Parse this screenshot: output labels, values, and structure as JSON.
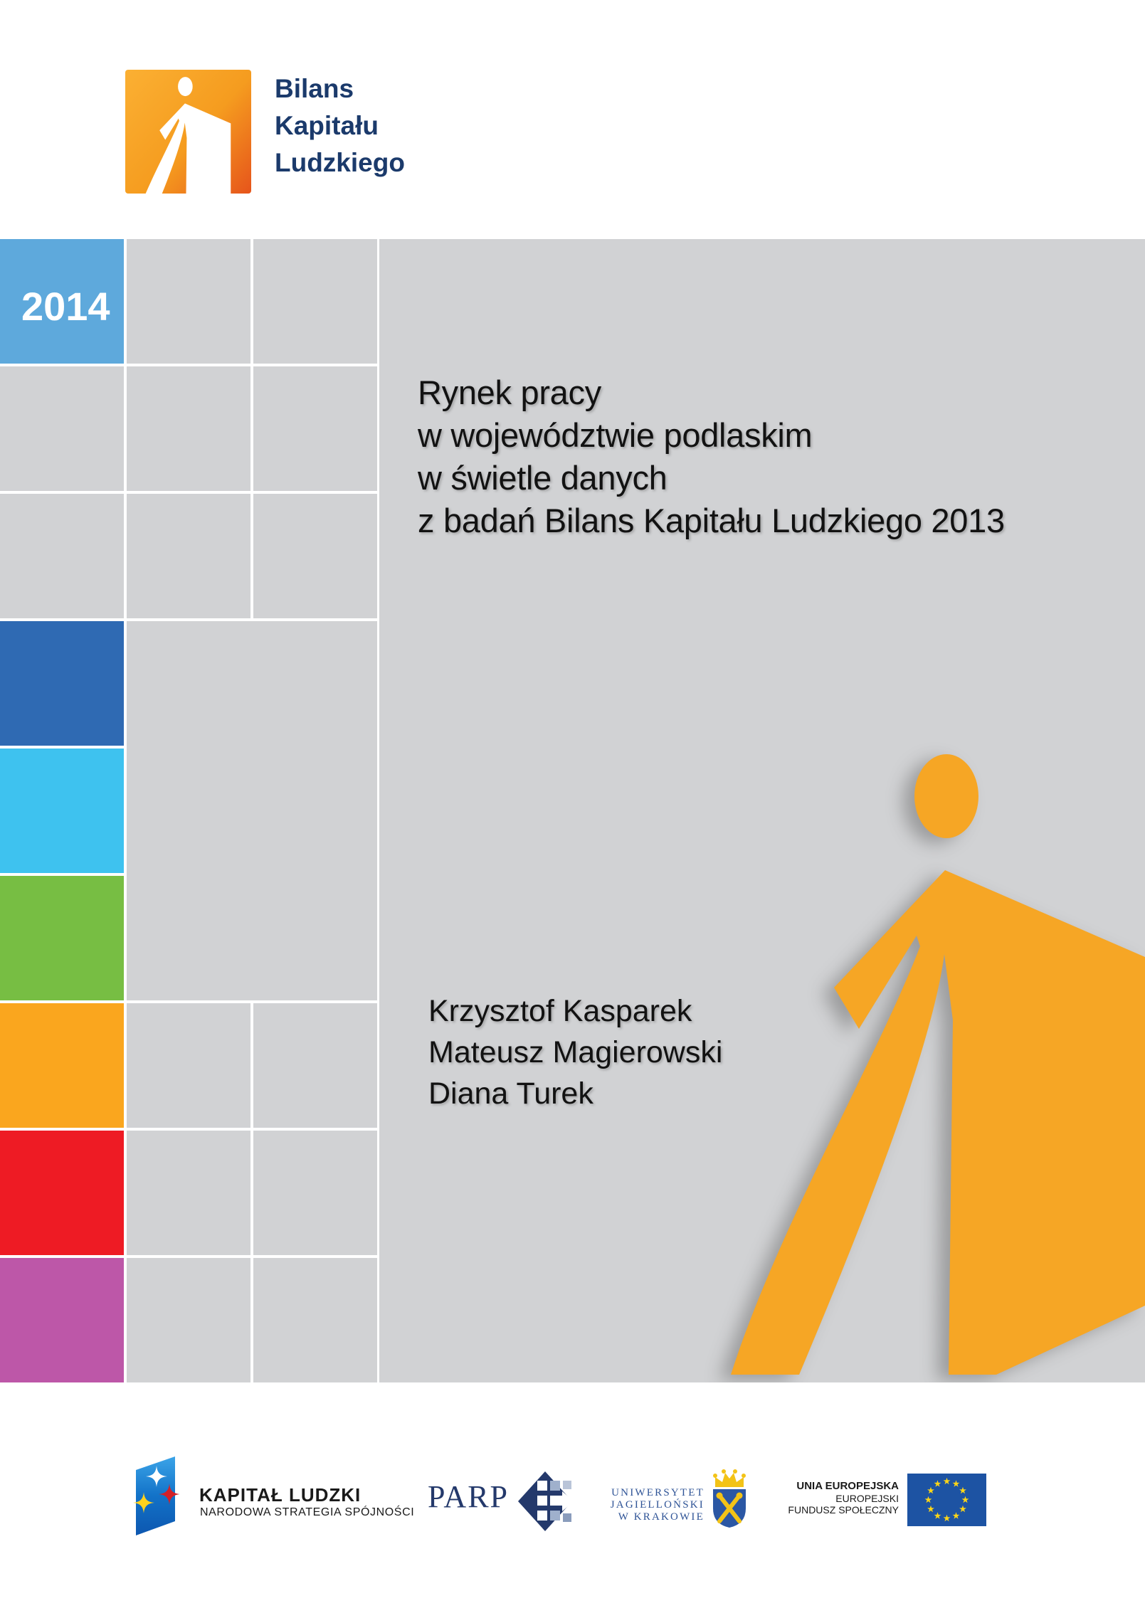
{
  "brand": {
    "line1": "Bilans",
    "line2": "Kapitału",
    "line3": "Ludzkiego"
  },
  "year_badge": "2014",
  "title": {
    "line1": "Rynek pracy",
    "line2": "w województwie podlaskim",
    "line3": "w świetle danych",
    "line4": "z badań Bilans Kapitału Ludzkiego 2013"
  },
  "authors": {
    "author1": "Krzysztof Kasparek",
    "author2": "Mateusz Magierowski",
    "author3": "Diana Turek"
  },
  "footer": {
    "kapital_ludzki": {
      "title": "KAPITAŁ LUDZKI",
      "subtitle": "NARODOWA STRATEGIA SPÓJNOŚCI"
    },
    "parp": {
      "label": "PARP"
    },
    "uj": {
      "line1": "UNIWERSYTET",
      "line2": "JAGIELLOŃSKI",
      "line3": "W KRAKOWIE"
    },
    "eu": {
      "line1": "UNIA EUROPEJSKA",
      "line2": "EUROPEJSKI",
      "line3": "FUNDUSZ SPOŁECZNY"
    }
  },
  "colors": {
    "brand_navy": "#1B3A6B",
    "figure_orange": "#F6A625",
    "panel_gray": "#D1D2D4",
    "cell_gray": "#D1D2D4",
    "year_cell_blue": "#5EA9DC",
    "eu_flag_blue": "#1D53A3",
    "eu_star_yellow": "#FFD617"
  },
  "grid": {
    "cell_color": "#D1D2D4",
    "year_cell": {
      "row": 0,
      "col": 0,
      "color": "#5EA9DC"
    },
    "colored_column": [
      {
        "row": 3,
        "color": "#2F6AB3",
        "name": "dark-blue"
      },
      {
        "row": 4,
        "color": "#3EC2EF",
        "name": "cyan"
      },
      {
        "row": 5,
        "color": "#77BE43",
        "name": "green"
      },
      {
        "row": 6,
        "color": "#FAA61E",
        "name": "orange"
      },
      {
        "row": 7,
        "color": "#EE1B24",
        "name": "red"
      },
      {
        "row": 8,
        "color": "#BD57A8",
        "name": "magenta"
      }
    ]
  }
}
